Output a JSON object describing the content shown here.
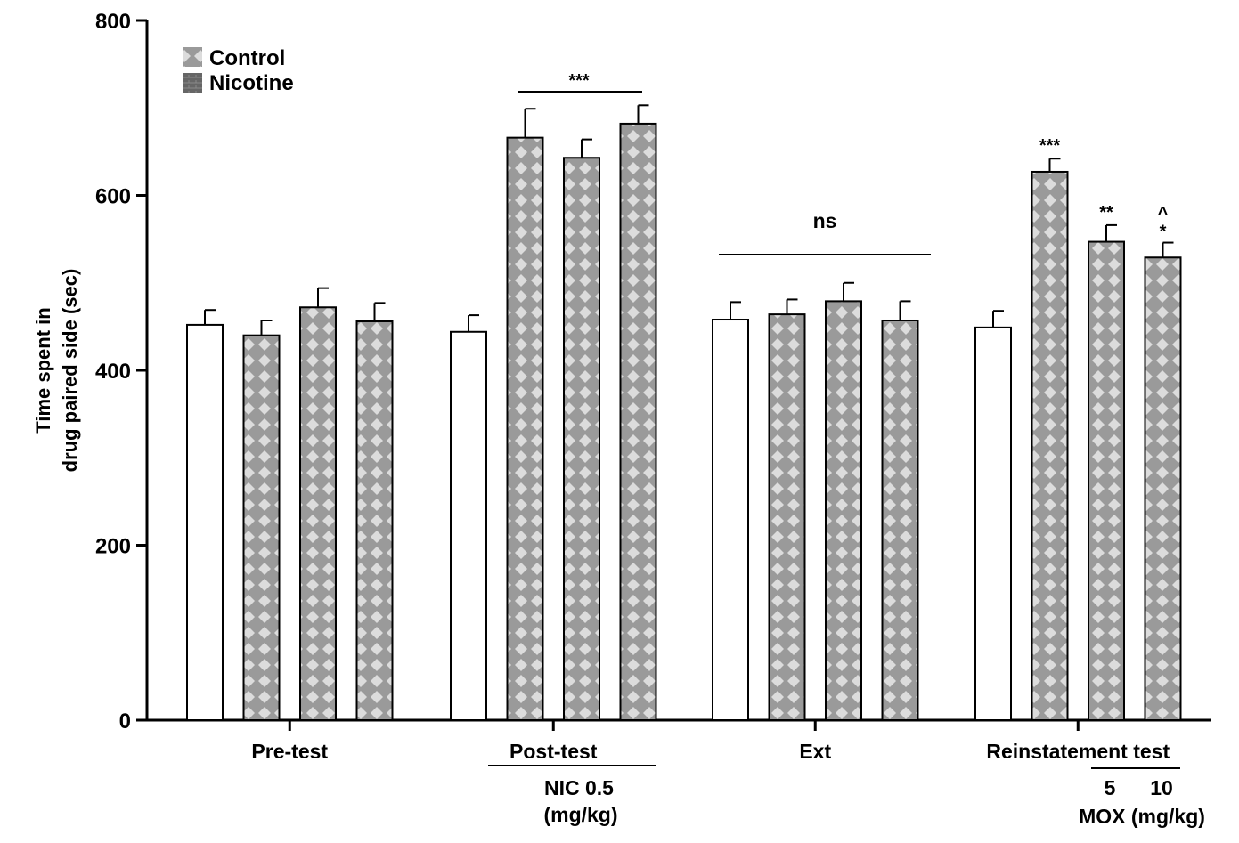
{
  "chart_data": {
    "type": "bar",
    "ylabel_line1": "Time spent in",
    "ylabel_line2": "drug paired side (sec)",
    "ylim": [
      0,
      800
    ],
    "yticks": [
      "0",
      "200",
      "400",
      "600",
      "800"
    ],
    "groups": [
      {
        "name": "Pre-test",
        "bars": [
          {
            "value": 452,
            "error": 17,
            "fill": "white"
          },
          {
            "value": 440,
            "error": 17,
            "fill": "pattern"
          },
          {
            "value": 472,
            "error": 22,
            "fill": "pattern"
          },
          {
            "value": 456,
            "error": 21,
            "fill": "pattern"
          }
        ]
      },
      {
        "name": "Post-test",
        "bars": [
          {
            "value": 444,
            "error": 19,
            "fill": "white"
          },
          {
            "value": 666,
            "error": 33,
            "fill": "pattern"
          },
          {
            "value": 643,
            "error": 21,
            "fill": "pattern"
          },
          {
            "value": 682,
            "error": 21,
            "fill": "pattern"
          }
        ]
      },
      {
        "name": "Ext",
        "bars": [
          {
            "value": 458,
            "error": 20,
            "fill": "white"
          },
          {
            "value": 464,
            "error": 17,
            "fill": "pattern"
          },
          {
            "value": 479,
            "error": 21,
            "fill": "pattern"
          },
          {
            "value": 457,
            "error": 22,
            "fill": "pattern"
          }
        ]
      },
      {
        "name": "Reinstatement test",
        "bars": [
          {
            "value": 449,
            "error": 19,
            "fill": "white"
          },
          {
            "value": 627,
            "error": 15,
            "fill": "pattern"
          },
          {
            "value": 547,
            "error": 19,
            "fill": "pattern"
          },
          {
            "value": 529,
            "error": 17,
            "fill": "pattern"
          }
        ]
      }
    ],
    "legend": [
      {
        "name": "Control",
        "swatch": "light-pattern"
      },
      {
        "name": "Nicotine",
        "swatch": "dark-pattern"
      }
    ],
    "legend_position": "top-left",
    "grid": false,
    "annotations": {
      "post_test_sig": "***",
      "ext_sig": "ns",
      "reinst_bar2": "***",
      "reinst_bar3": "**",
      "reinst_bar4_top": "^",
      "reinst_bar4": "*"
    },
    "sublabels": {
      "nic_line1": "NIC 0.5",
      "nic_line2": "(mg/kg)",
      "mox_dose1": "5",
      "mox_dose2": "10",
      "mox_unit": "MOX (mg/kg)"
    },
    "colors": {
      "bar_pattern_bg": "#9a9a9a",
      "bar_pattern_fg": "#dcdcdc",
      "axis": "#000000"
    }
  }
}
